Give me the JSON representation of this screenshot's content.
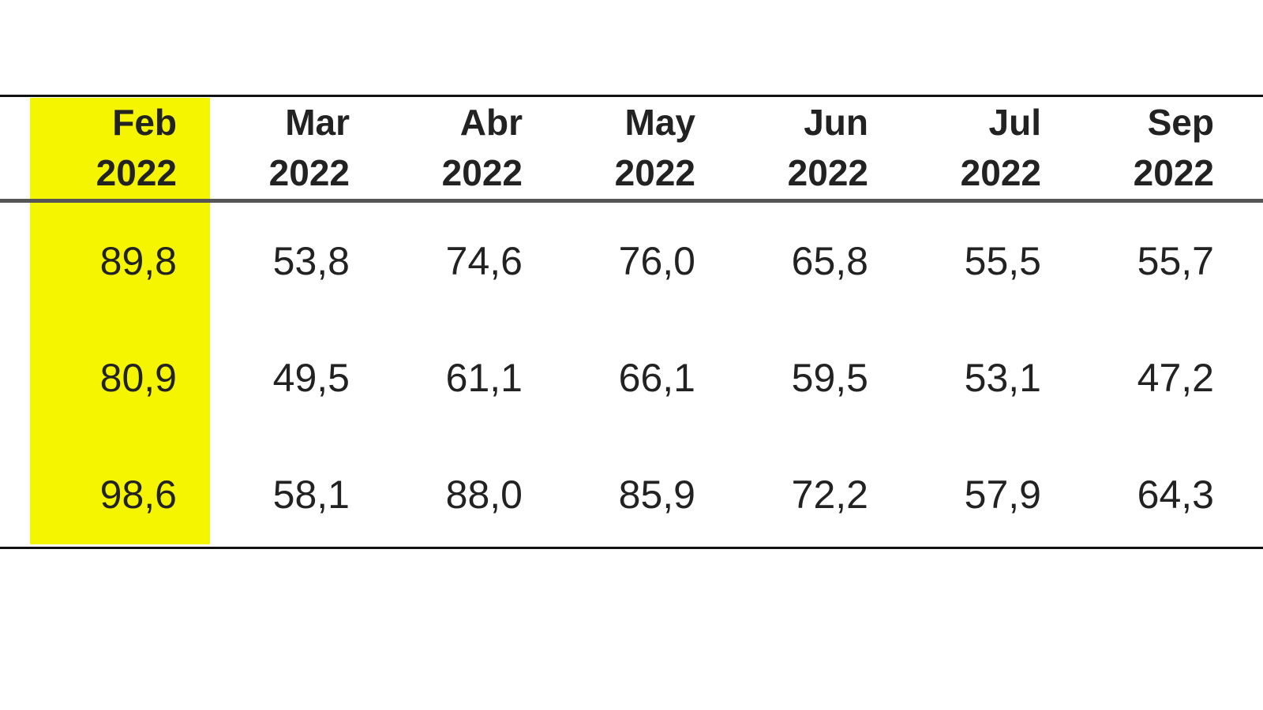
{
  "table": {
    "columns": [
      {
        "month": "Feb",
        "year": "2022"
      },
      {
        "month": "Mar",
        "year": "2022"
      },
      {
        "month": "Abr",
        "year": "2022"
      },
      {
        "month": "May",
        "year": "2022"
      },
      {
        "month": "Jun",
        "year": "2022"
      },
      {
        "month": "Jul",
        "year": "2022"
      },
      {
        "month": "Sep",
        "year": "2022"
      }
    ],
    "rows": [
      [
        "89,8",
        "53,8",
        "74,6",
        "76,0",
        "65,8",
        "55,5",
        "55,7"
      ],
      [
        "80,9",
        "49,5",
        "61,1",
        "66,1",
        "59,5",
        "53,1",
        "47,2"
      ],
      [
        "98,6",
        "58,1",
        "88,0",
        "85,9",
        "72,2",
        "57,9",
        "64,3"
      ]
    ]
  }
}
